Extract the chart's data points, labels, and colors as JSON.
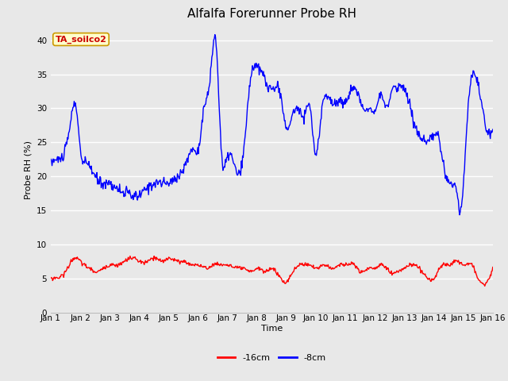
{
  "title": "Alfalfa Forerunner Probe RH",
  "xlabel": "Time",
  "ylabel": "Probe RH (%)",
  "ylim": [
    0,
    42
  ],
  "yticks": [
    0,
    5,
    10,
    15,
    20,
    25,
    30,
    35,
    40
  ],
  "background_color": "#e8e8e8",
  "plot_bg_color": "#e8e8e8",
  "grid_color": "white",
  "line_color_8cm": "blue",
  "line_color_16cm": "red",
  "legend_label_16cm": "-16cm",
  "legend_label_8cm": "-8cm",
  "annotation_text": "TA_soilco2",
  "annotation_bg": "#ffffcc",
  "annotation_border": "#cc9900",
  "annotation_text_color": "#cc0000",
  "xtick_labels": [
    "Jan 1",
    "Jan 2",
    "Jan 3",
    "Jan 4",
    "Jan 5",
    "Jan 6",
    "Jan 7",
    "Jan 8",
    "Jan 9",
    "Jan 10",
    "Jan 11",
    "Jan 12",
    "Jan 13",
    "Jan 14",
    "Jan 15",
    "Jan 16"
  ],
  "title_fontsize": 11,
  "axis_fontsize": 8,
  "tick_fontsize": 7.5,
  "legend_fontsize": 8
}
